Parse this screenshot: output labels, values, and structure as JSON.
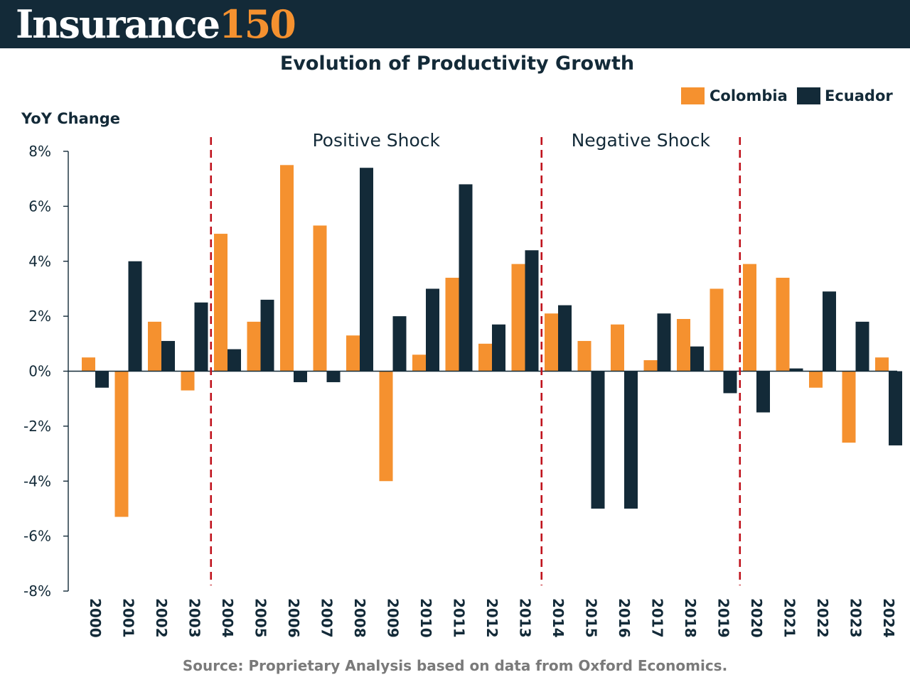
{
  "brand": {
    "word": "Insurance",
    "number": "150"
  },
  "colors": {
    "banner": "#132a38",
    "colombia": "#f5912f",
    "ecuador": "#132a38",
    "shock_line": "#c0121c",
    "source_text": "#7a7a7a"
  },
  "source": "Source: Proprietary Analysis based on data from Oxford Economics.",
  "chart_data": {
    "type": "bar",
    "title": "Evolution of Productivity Growth",
    "ylabel": "YoY Change",
    "xlabel": "",
    "ylim": [
      -8,
      8
    ],
    "yticks": [
      8,
      6,
      4,
      2,
      0,
      -2,
      -4,
      -6,
      -8
    ],
    "ytick_labels": [
      "8%",
      "6%",
      "4%",
      "2%",
      "0%",
      "-2%",
      "-4%",
      "-6%",
      "-8%"
    ],
    "grid": false,
    "legend_position": "top-right",
    "categories": [
      "2000",
      "2001",
      "2002",
      "2003",
      "2004",
      "2005",
      "2006",
      "2007",
      "2008",
      "2009",
      "2010",
      "2011",
      "2012",
      "2013",
      "2014",
      "2015",
      "2016",
      "2017",
      "2018",
      "2019",
      "2020",
      "2021",
      "2022",
      "2023",
      "2024"
    ],
    "series": [
      {
        "name": "Colombia",
        "color": "#f5912f",
        "values": [
          0.5,
          -5.3,
          1.8,
          -0.7,
          5.0,
          1.8,
          7.5,
          5.3,
          1.3,
          -4.0,
          0.6,
          3.4,
          1.0,
          3.9,
          2.1,
          1.1,
          1.7,
          0.4,
          1.9,
          3.0,
          3.9,
          3.4,
          -0.6,
          -2.6,
          0.5
        ]
      },
      {
        "name": "Ecuador",
        "color": "#132a38",
        "values": [
          -0.6,
          4.0,
          1.1,
          2.5,
          0.8,
          2.6,
          -0.4,
          -0.4,
          7.4,
          2.0,
          3.0,
          6.8,
          1.7,
          4.4,
          2.4,
          -5.0,
          -5.0,
          2.1,
          0.9,
          -0.8,
          -1.5,
          0.1,
          2.9,
          1.8,
          -2.7
        ]
      }
    ],
    "shock_lines_between": [
      [
        "2003",
        "2004"
      ],
      [
        "2013",
        "2014"
      ],
      [
        "2019",
        "2020"
      ]
    ],
    "annotations": [
      {
        "text": "Positive Shock",
        "between": [
          "2004",
          "2013"
        ]
      },
      {
        "text": "Negative Shock",
        "between": [
          "2014",
          "2019"
        ]
      }
    ]
  }
}
